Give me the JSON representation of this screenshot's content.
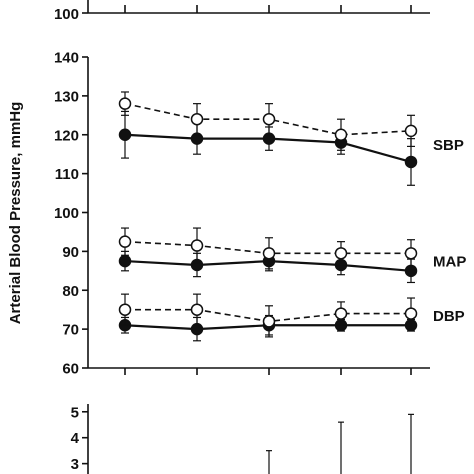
{
  "chart_data": [
    {
      "type": "line",
      "panel": "top",
      "yticks": [
        100
      ],
      "x": [
        1,
        2,
        3,
        4,
        5
      ]
    },
    {
      "type": "line",
      "panel": "middle",
      "ylabel": "Arterial Blood Pressure, mmHg",
      "ylim": [
        60,
        140
      ],
      "yticks": [
        60,
        70,
        80,
        90,
        100,
        110,
        120,
        130,
        140
      ],
      "x": [
        1,
        2,
        3,
        4,
        5
      ],
      "series": [
        {
          "name": "SBP",
          "style": "filled-solid",
          "values": [
            120,
            119,
            119,
            118,
            113
          ],
          "err": [
            6,
            4,
            3,
            3,
            6
          ]
        },
        {
          "name": "",
          "style": "open-dashed",
          "values": [
            128,
            124,
            124,
            120,
            121
          ],
          "err": [
            3,
            4,
            4,
            4,
            4
          ]
        },
        {
          "name": "MAP",
          "style": "filled-solid",
          "values": [
            87.5,
            86.5,
            87.5,
            86.5,
            85
          ],
          "err": [
            2.5,
            3,
            2.5,
            2.5,
            3
          ]
        },
        {
          "name": "",
          "style": "open-dashed",
          "values": [
            92.5,
            91.5,
            89.5,
            89.5,
            89.5
          ],
          "err": [
            3.5,
            4.5,
            4,
            3,
            3.5
          ]
        },
        {
          "name": "DBP",
          "style": "filled-solid",
          "values": [
            71,
            70,
            71,
            71,
            71
          ],
          "err": [
            2,
            3,
            2.5,
            1.5,
            1.5
          ]
        },
        {
          "name": "",
          "style": "open-dashed",
          "values": [
            75,
            75,
            72,
            74,
            74
          ],
          "err": [
            4,
            4,
            4,
            3,
            4
          ]
        }
      ]
    },
    {
      "type": "line",
      "panel": "bottom",
      "ylim": [
        2.6,
        5.3
      ],
      "yticks": [
        3,
        4,
        5
      ],
      "x": [
        1,
        2,
        3,
        4,
        5
      ],
      "error_bar_tops": [
        null,
        null,
        3.5,
        4.6,
        4.9
      ]
    }
  ],
  "colors": {
    "ink": "#111111",
    "background": "#ffffff"
  }
}
